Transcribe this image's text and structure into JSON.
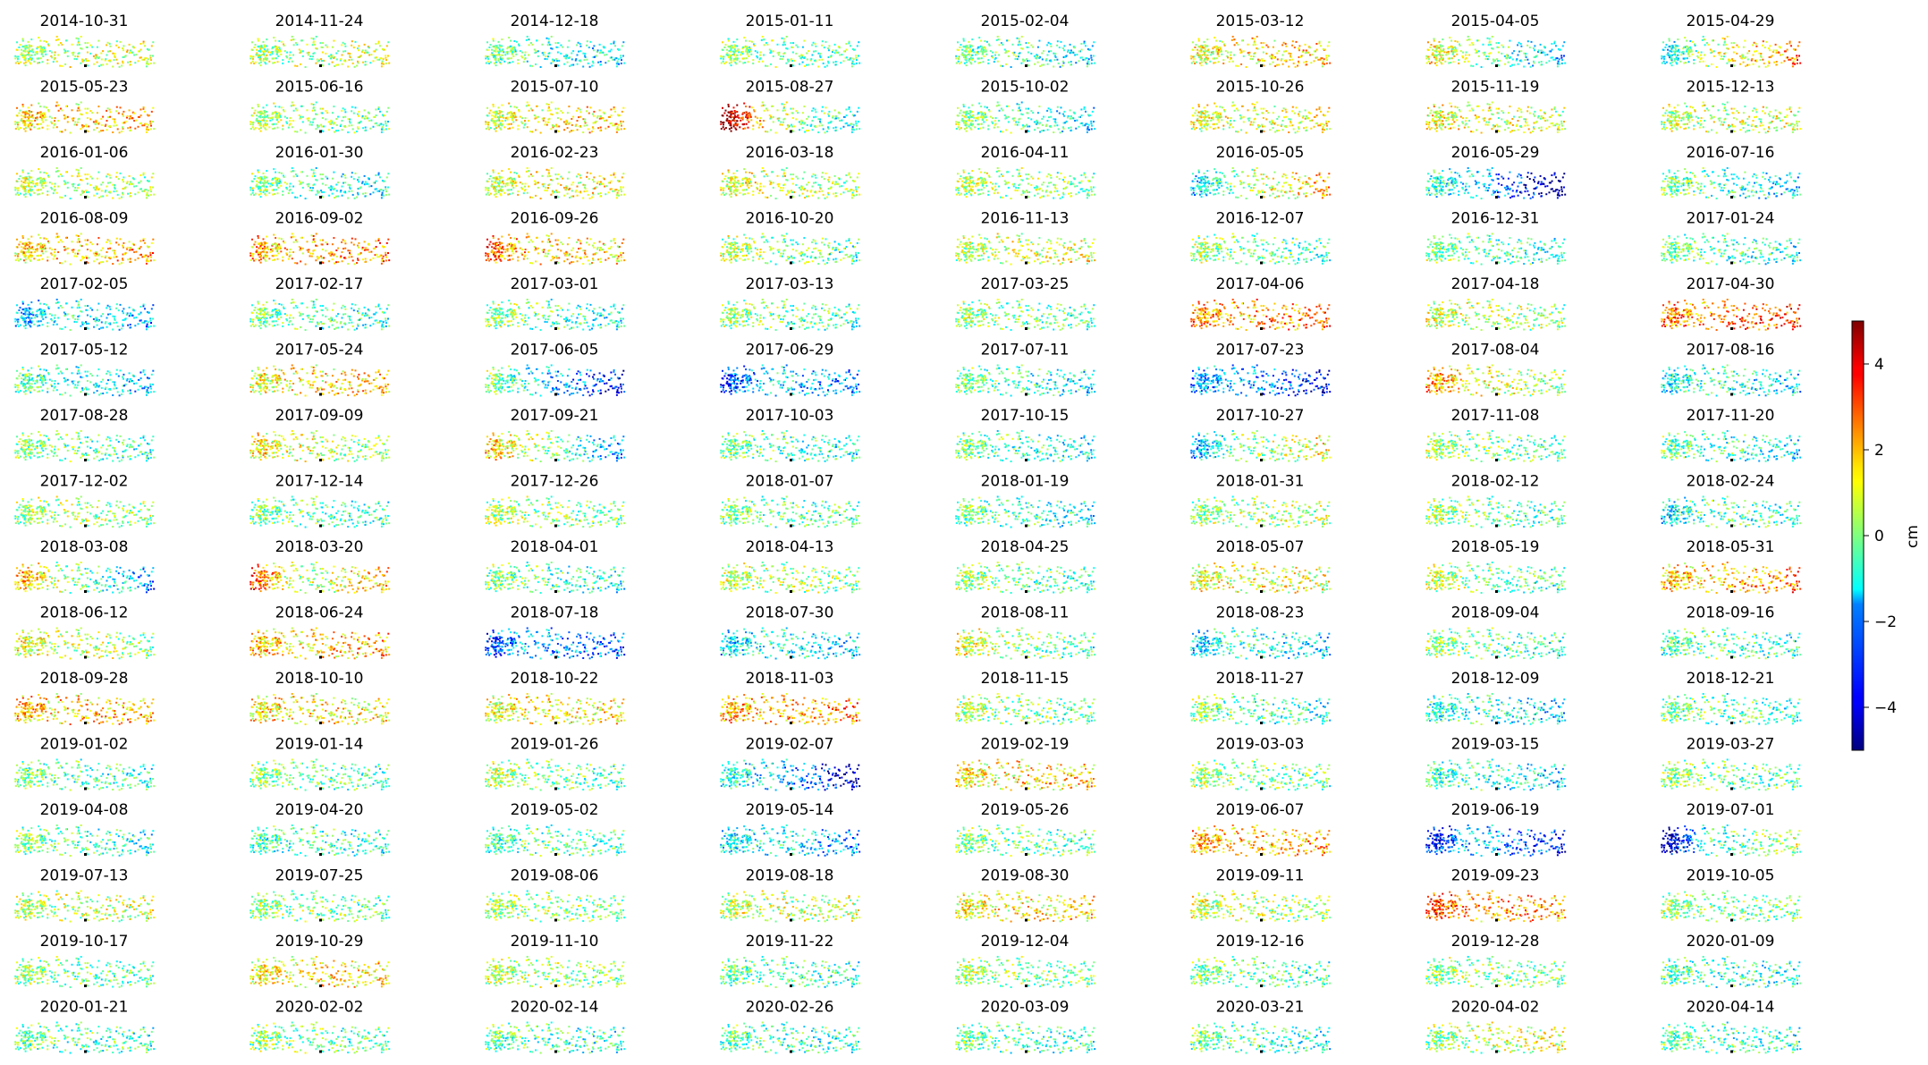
{
  "chart_data": {
    "type": "scatter",
    "description_kind": "small-multiples",
    "grid": false,
    "layout_words": "16 rows by 8 columns of map panels, colorbar on the right",
    "colormap": "jet",
    "colorbar": {
      "label": "cm",
      "range": [
        -5,
        5
      ],
      "ticks": [
        4,
        2,
        0,
        -2,
        -4
      ],
      "tick_labels": [
        "4",
        "2",
        "0",
        "−2",
        "−4"
      ]
    },
    "panels": [
      {
        "date": "2014-10-31",
        "bias": 0.5,
        "wave": 0.3,
        "west_anomaly": 0
      },
      {
        "date": "2014-11-24",
        "bias": 0.4,
        "wave": 0.2,
        "west_anomaly": 0
      },
      {
        "date": "2014-12-18",
        "bias": -0.6,
        "wave": -0.8,
        "west_anomaly": 0
      },
      {
        "date": "2015-01-11",
        "bias": 0.0,
        "wave": -0.4,
        "west_anomaly": 0
      },
      {
        "date": "2015-02-04",
        "bias": -0.5,
        "wave": -0.6,
        "west_anomaly": 0
      },
      {
        "date": "2015-03-12",
        "bias": 1.2,
        "wave": 0.5,
        "west_anomaly": 0
      },
      {
        "date": "2015-04-05",
        "bias": 0.3,
        "wave": -1.8,
        "west_anomaly": 0
      },
      {
        "date": "2015-04-29",
        "bias": 0.4,
        "wave": 1.6,
        "west_anomaly": -1
      },
      {
        "date": "2015-05-23",
        "bias": 1.5,
        "wave": 0.2,
        "west_anomaly": 0
      },
      {
        "date": "2015-06-16",
        "bias": 0.2,
        "wave": -0.5,
        "west_anomaly": 0
      },
      {
        "date": "2015-07-10",
        "bias": 1.0,
        "wave": 0.6,
        "west_anomaly": 0
      },
      {
        "date": "2015-08-27",
        "bias": 0.8,
        "wave": -1.6,
        "west_anomaly": 3
      },
      {
        "date": "2015-10-02",
        "bias": -0.3,
        "wave": -0.9,
        "west_anomaly": 0
      },
      {
        "date": "2015-10-26",
        "bias": 0.9,
        "wave": 0.2,
        "west_anomaly": 0
      },
      {
        "date": "2015-11-19",
        "bias": 1.0,
        "wave": -0.3,
        "west_anomaly": 0
      },
      {
        "date": "2015-12-13",
        "bias": 0.6,
        "wave": 0.3,
        "west_anomaly": 0
      },
      {
        "date": "2016-01-06",
        "bias": 0.5,
        "wave": -0.2,
        "west_anomaly": 0
      },
      {
        "date": "2016-01-30",
        "bias": -0.3,
        "wave": -0.8,
        "west_anomaly": 0
      },
      {
        "date": "2016-02-23",
        "bias": 0.8,
        "wave": 0.3,
        "west_anomaly": 0
      },
      {
        "date": "2016-03-18",
        "bias": 0.9,
        "wave": -0.5,
        "west_anomaly": 0
      },
      {
        "date": "2016-04-11",
        "bias": 0.3,
        "wave": -0.4,
        "west_anomaly": 0
      },
      {
        "date": "2016-05-05",
        "bias": 0.2,
        "wave": 1.3,
        "west_anomaly": -1
      },
      {
        "date": "2016-05-29",
        "bias": -1.2,
        "wave": -2.8,
        "west_anomaly": -1
      },
      {
        "date": "2016-07-16",
        "bias": -0.4,
        "wave": -0.9,
        "west_anomaly": 0
      },
      {
        "date": "2016-08-09",
        "bias": 1.6,
        "wave": 0.4,
        "west_anomaly": 0
      },
      {
        "date": "2016-09-02",
        "bias": 1.8,
        "wave": 0.6,
        "west_anomaly": 0.5
      },
      {
        "date": "2016-09-26",
        "bias": 1.7,
        "wave": -0.2,
        "west_anomaly": 1
      },
      {
        "date": "2016-10-20",
        "bias": 0.2,
        "wave": -0.7,
        "west_anomaly": 0
      },
      {
        "date": "2016-11-13",
        "bias": 0.6,
        "wave": 0.4,
        "west_anomaly": 0
      },
      {
        "date": "2016-12-07",
        "bias": 0.0,
        "wave": -0.6,
        "west_anomaly": 0
      },
      {
        "date": "2016-12-31",
        "bias": -0.2,
        "wave": -0.7,
        "west_anomaly": 0
      },
      {
        "date": "2017-01-24",
        "bias": -0.3,
        "wave": -0.6,
        "west_anomaly": 0
      },
      {
        "date": "2017-02-05",
        "bias": -0.9,
        "wave": -1.0,
        "west_anomaly": -1.5
      },
      {
        "date": "2017-02-17",
        "bias": -0.3,
        "wave": -0.5,
        "west_anomaly": 0
      },
      {
        "date": "2017-03-01",
        "bias": -0.2,
        "wave": -0.8,
        "west_anomaly": 0
      },
      {
        "date": "2017-03-13",
        "bias": 0.0,
        "wave": -0.5,
        "west_anomaly": 0
      },
      {
        "date": "2017-03-25",
        "bias": 0.1,
        "wave": -0.6,
        "west_anomaly": 0
      },
      {
        "date": "2017-04-06",
        "bias": 2.0,
        "wave": 0.5,
        "west_anomaly": 0.5
      },
      {
        "date": "2017-04-18",
        "bias": 0.6,
        "wave": -0.4,
        "west_anomaly": 0
      },
      {
        "date": "2017-04-30",
        "bias": 2.0,
        "wave": 1.0,
        "west_anomaly": 1
      },
      {
        "date": "2017-05-12",
        "bias": -0.8,
        "wave": -0.9,
        "west_anomaly": 0
      },
      {
        "date": "2017-05-24",
        "bias": 1.3,
        "wave": 0.4,
        "west_anomaly": 0
      },
      {
        "date": "2017-06-05",
        "bias": -1.0,
        "wave": -2.2,
        "west_anomaly": 0
      },
      {
        "date": "2017-06-29",
        "bias": -1.2,
        "wave": -1.0,
        "west_anomaly": -2.5
      },
      {
        "date": "2017-07-11",
        "bias": -0.4,
        "wave": -0.8,
        "west_anomaly": 0
      },
      {
        "date": "2017-07-23",
        "bias": -1.6,
        "wave": -1.8,
        "west_anomaly": -1.5
      },
      {
        "date": "2017-08-04",
        "bias": 1.2,
        "wave": -0.8,
        "west_anomaly": 0.5
      },
      {
        "date": "2017-08-16",
        "bias": -0.6,
        "wave": -0.8,
        "west_anomaly": -1
      },
      {
        "date": "2017-08-28",
        "bias": -0.1,
        "wave": -0.6,
        "west_anomaly": 0
      },
      {
        "date": "2017-09-09",
        "bias": 1.0,
        "wave": -0.9,
        "west_anomaly": 0
      },
      {
        "date": "2017-09-21",
        "bias": 0.6,
        "wave": -2.2,
        "west_anomaly": 0
      },
      {
        "date": "2017-10-03",
        "bias": -0.3,
        "wave": -0.7,
        "west_anomaly": 0
      },
      {
        "date": "2017-10-15",
        "bias": -0.4,
        "wave": -0.7,
        "west_anomaly": 0
      },
      {
        "date": "2017-10-27",
        "bias": -0.3,
        "wave": 1.2,
        "west_anomaly": -1
      },
      {
        "date": "2017-11-08",
        "bias": 0.0,
        "wave": -0.4,
        "west_anomaly": 0
      },
      {
        "date": "2017-11-20",
        "bias": -0.5,
        "wave": -0.6,
        "west_anomaly": 0
      },
      {
        "date": "2017-12-02",
        "bias": 0.3,
        "wave": 0.0,
        "west_anomaly": 0
      },
      {
        "date": "2017-12-14",
        "bias": -0.2,
        "wave": -0.5,
        "west_anomaly": 0
      },
      {
        "date": "2017-12-26",
        "bias": 0.2,
        "wave": -0.3,
        "west_anomaly": 0
      },
      {
        "date": "2018-01-07",
        "bias": -0.2,
        "wave": -0.4,
        "west_anomaly": 0
      },
      {
        "date": "2018-01-19",
        "bias": -0.4,
        "wave": -0.6,
        "west_anomaly": 0
      },
      {
        "date": "2018-01-31",
        "bias": 0.3,
        "wave": 0.2,
        "west_anomaly": 0
      },
      {
        "date": "2018-02-12",
        "bias": 0.0,
        "wave": -0.5,
        "west_anomaly": 0
      },
      {
        "date": "2018-02-24",
        "bias": -0.4,
        "wave": -0.3,
        "west_anomaly": -1
      },
      {
        "date": "2018-03-08",
        "bias": 0.5,
        "wave": -2.2,
        "west_anomaly": 0.5
      },
      {
        "date": "2018-03-20",
        "bias": 0.0,
        "wave": 1.5,
        "west_anomaly": 3.5
      },
      {
        "date": "2018-04-01",
        "bias": -0.3,
        "wave": -0.6,
        "west_anomaly": 0
      },
      {
        "date": "2018-04-13",
        "bias": 0.4,
        "wave": -0.3,
        "west_anomaly": 0
      },
      {
        "date": "2018-04-25",
        "bias": 0.0,
        "wave": -0.6,
        "west_anomaly": 0
      },
      {
        "date": "2018-05-07",
        "bias": 1.0,
        "wave": 0.0,
        "west_anomaly": 0
      },
      {
        "date": "2018-05-19",
        "bias": 0.2,
        "wave": -0.8,
        "west_anomaly": 0
      },
      {
        "date": "2018-05-31",
        "bias": 1.6,
        "wave": 0.8,
        "west_anomaly": 0.5
      },
      {
        "date": "2018-06-12",
        "bias": 0.8,
        "wave": -0.5,
        "west_anomaly": 0
      },
      {
        "date": "2018-06-24",
        "bias": 1.6,
        "wave": 0.3,
        "west_anomaly": 0.5
      },
      {
        "date": "2018-07-18",
        "bias": -1.5,
        "wave": -1.2,
        "west_anomaly": -2
      },
      {
        "date": "2018-07-30",
        "bias": -0.8,
        "wave": -0.6,
        "west_anomaly": -1.2
      },
      {
        "date": "2018-08-11",
        "bias": 0.5,
        "wave": -1.0,
        "west_anomaly": 0
      },
      {
        "date": "2018-08-23",
        "bias": -0.5,
        "wave": -0.9,
        "west_anomaly": -1.5
      },
      {
        "date": "2018-09-04",
        "bias": -0.1,
        "wave": -0.7,
        "west_anomaly": 0
      },
      {
        "date": "2018-09-16",
        "bias": -0.3,
        "wave": -0.6,
        "west_anomaly": -0.5
      },
      {
        "date": "2018-09-28",
        "bias": 1.6,
        "wave": 0.4,
        "west_anomaly": 0.5
      },
      {
        "date": "2018-10-10",
        "bias": 1.4,
        "wave": 0.0,
        "west_anomaly": 0
      },
      {
        "date": "2018-10-22",
        "bias": 1.2,
        "wave": 0.2,
        "west_anomaly": 0
      },
      {
        "date": "2018-11-03",
        "bias": 1.8,
        "wave": 0.5,
        "west_anomaly": 0.5
      },
      {
        "date": "2018-11-15",
        "bias": 0.2,
        "wave": -0.4,
        "west_anomaly": 0
      },
      {
        "date": "2018-11-27",
        "bias": -0.2,
        "wave": -0.7,
        "west_anomaly": 0
      },
      {
        "date": "2018-12-09",
        "bias": -0.7,
        "wave": -0.7,
        "west_anomaly": -0.5
      },
      {
        "date": "2018-12-21",
        "bias": -0.3,
        "wave": -0.4,
        "west_anomaly": 0
      },
      {
        "date": "2019-01-02",
        "bias": -0.4,
        "wave": -0.5,
        "west_anomaly": 0
      },
      {
        "date": "2019-01-14",
        "bias": 0.0,
        "wave": -0.5,
        "west_anomaly": 0
      },
      {
        "date": "2019-01-26",
        "bias": 0.2,
        "wave": -0.5,
        "west_anomaly": 0
      },
      {
        "date": "2019-02-07",
        "bias": -1.2,
        "wave": -2.6,
        "west_anomaly": -1
      },
      {
        "date": "2019-02-19",
        "bias": 1.4,
        "wave": 0.3,
        "west_anomaly": 0
      },
      {
        "date": "2019-03-03",
        "bias": 0.1,
        "wave": -0.4,
        "west_anomaly": 0
      },
      {
        "date": "2019-03-15",
        "bias": -0.6,
        "wave": -0.9,
        "west_anomaly": -0.5
      },
      {
        "date": "2019-03-27",
        "bias": -0.1,
        "wave": -0.3,
        "west_anomaly": 0
      },
      {
        "date": "2019-04-08",
        "bias": -0.3,
        "wave": -0.6,
        "west_anomaly": 0
      },
      {
        "date": "2019-04-20",
        "bias": -0.4,
        "wave": -0.4,
        "west_anomaly": -0.5
      },
      {
        "date": "2019-05-02",
        "bias": -0.3,
        "wave": -0.3,
        "west_anomaly": -0.5
      },
      {
        "date": "2019-05-14",
        "bias": -0.8,
        "wave": -1.2,
        "west_anomaly": -1
      },
      {
        "date": "2019-05-26",
        "bias": -0.1,
        "wave": -0.3,
        "west_anomaly": 0
      },
      {
        "date": "2019-06-07",
        "bias": 1.8,
        "wave": 0.4,
        "west_anomaly": 0.5
      },
      {
        "date": "2019-06-19",
        "bias": -1.5,
        "wave": -1.5,
        "west_anomaly": -2.8
      },
      {
        "date": "2019-07-01",
        "bias": -1.0,
        "wave": 1.2,
        "west_anomaly": -3
      },
      {
        "date": "2019-07-13",
        "bias": 0.5,
        "wave": 0.2,
        "west_anomaly": 0
      },
      {
        "date": "2019-07-25",
        "bias": 0.1,
        "wave": -0.3,
        "west_anomaly": 0
      },
      {
        "date": "2019-08-06",
        "bias": 0.2,
        "wave": -0.2,
        "west_anomaly": 0
      },
      {
        "date": "2019-08-18",
        "bias": 0.6,
        "wave": 0.0,
        "west_anomaly": 0
      },
      {
        "date": "2019-08-30",
        "bias": 1.2,
        "wave": 0.3,
        "west_anomaly": 0
      },
      {
        "date": "2019-09-11",
        "bias": 0.6,
        "wave": -0.4,
        "west_anomaly": 0
      },
      {
        "date": "2019-09-23",
        "bias": 2.2,
        "wave": 0.0,
        "west_anomaly": 1
      },
      {
        "date": "2019-10-05",
        "bias": 0.1,
        "wave": -0.3,
        "west_anomaly": 0
      },
      {
        "date": "2019-10-17",
        "bias": 0.0,
        "wave": -0.5,
        "west_anomaly": 0
      },
      {
        "date": "2019-10-29",
        "bias": 1.3,
        "wave": 0.3,
        "west_anomaly": 0
      },
      {
        "date": "2019-11-10",
        "bias": 0.4,
        "wave": -0.4,
        "west_anomaly": 0
      },
      {
        "date": "2019-11-22",
        "bias": -0.4,
        "wave": -0.4,
        "west_anomaly": 0
      },
      {
        "date": "2019-12-04",
        "bias": 0.2,
        "wave": -0.2,
        "west_anomaly": 0
      },
      {
        "date": "2019-12-16",
        "bias": -0.2,
        "wave": -0.4,
        "west_anomaly": 0
      },
      {
        "date": "2019-12-28",
        "bias": 0.1,
        "wave": -0.2,
        "west_anomaly": 0
      },
      {
        "date": "2020-01-09",
        "bias": -0.6,
        "wave": -0.4,
        "west_anomaly": 0
      },
      {
        "date": "2020-01-21",
        "bias": -0.4,
        "wave": -0.3,
        "west_anomaly": 0
      },
      {
        "date": "2020-02-02",
        "bias": -0.1,
        "wave": -0.3,
        "west_anomaly": 0
      },
      {
        "date": "2020-02-14",
        "bias": -0.5,
        "wave": -0.4,
        "west_anomaly": 0
      },
      {
        "date": "2020-02-26",
        "bias": -0.5,
        "wave": -0.3,
        "west_anomaly": 0
      },
      {
        "date": "2020-03-09",
        "bias": -0.4,
        "wave": -0.4,
        "west_anomaly": 0
      },
      {
        "date": "2020-03-21",
        "bias": -0.4,
        "wave": -0.5,
        "west_anomaly": 0
      },
      {
        "date": "2020-04-02",
        "bias": 0.4,
        "wave": 0.5,
        "west_anomaly": 0
      },
      {
        "date": "2020-04-14",
        "bias": -0.4,
        "wave": -0.4,
        "west_anomaly": 0
      }
    ]
  }
}
